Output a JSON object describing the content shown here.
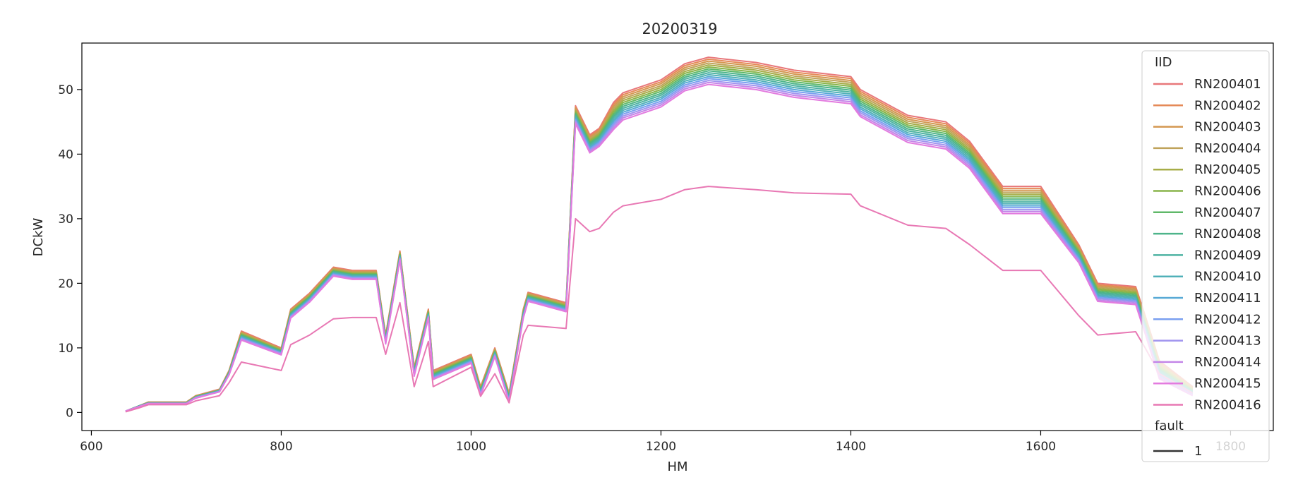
{
  "chart_data": {
    "type": "line",
    "title": "20200319",
    "xlabel": "HM",
    "ylabel": "DCkW",
    "xlim": [
      590,
      1845
    ],
    "ylim": [
      -2.8,
      57.2
    ],
    "xticks": [
      600,
      800,
      1000,
      1200,
      1400,
      1600,
      1800
    ],
    "yticks": [
      0,
      10,
      20,
      30,
      40,
      50
    ],
    "grid": false,
    "legend": {
      "placement": "right",
      "hue_title": "IID",
      "style_title": "fault",
      "style_entries": [
        "1"
      ]
    },
    "x": [
      636,
      650,
      660,
      700,
      710,
      735,
      745,
      758,
      800,
      810,
      830,
      855,
      875,
      900,
      910,
      925,
      940,
      955,
      960,
      1000,
      1010,
      1025,
      1040,
      1055,
      1060,
      1100,
      1110,
      1125,
      1135,
      1150,
      1160,
      1200,
      1225,
      1250,
      1300,
      1340,
      1400,
      1410,
      1460,
      1500,
      1525,
      1560,
      1600,
      1640,
      1660,
      1700,
      1710,
      1725,
      1760
    ],
    "series": [
      {
        "name": "RN200401",
        "color": "#e8777a",
        "values": [
          0.2,
          1.0,
          1.6,
          1.6,
          2.6,
          3.6,
          6.5,
          12.6,
          10.0,
          16.0,
          18.5,
          22.5,
          22.0,
          22.0,
          12.0,
          25.0,
          7.0,
          16.0,
          6.5,
          9.0,
          4.0,
          10.0,
          3.0,
          16.0,
          18.6,
          17.0,
          47.5,
          43.0,
          44.0,
          48.0,
          49.5,
          51.5,
          54.0,
          55.0,
          54.2,
          53.0,
          52.0,
          50.0,
          46.0,
          45.0,
          42.0,
          35.0,
          35.0,
          26.0,
          20.0,
          19.5,
          15.0,
          8.0,
          4.0
        ]
      },
      {
        "name": "RN200402",
        "color": "#e58a58",
        "values": [
          0.2,
          1.0,
          1.6,
          1.6,
          2.6,
          3.5,
          6.4,
          12.5,
          9.9,
          15.9,
          18.4,
          22.4,
          21.9,
          21.9,
          11.9,
          24.9,
          6.9,
          15.9,
          6.4,
          8.9,
          3.9,
          9.9,
          2.9,
          15.9,
          18.5,
          16.9,
          47.3,
          42.8,
          43.8,
          47.7,
          49.2,
          51.2,
          53.7,
          54.7,
          53.9,
          52.7,
          51.7,
          49.7,
          45.7,
          44.7,
          41.7,
          34.7,
          34.7,
          25.8,
          19.8,
          19.3,
          14.8,
          7.8,
          3.9
        ]
      },
      {
        "name": "RN200403",
        "color": "#d49750",
        "values": [
          0.2,
          1.0,
          1.6,
          1.6,
          2.5,
          3.5,
          6.4,
          12.4,
          9.8,
          15.8,
          18.3,
          22.3,
          21.8,
          21.8,
          11.8,
          24.8,
          6.8,
          15.8,
          6.3,
          8.8,
          3.8,
          9.8,
          2.8,
          15.8,
          18.4,
          16.8,
          47.1,
          42.6,
          43.6,
          47.4,
          48.9,
          50.9,
          53.4,
          54.4,
          53.6,
          52.4,
          51.4,
          49.4,
          45.4,
          44.4,
          41.4,
          34.4,
          34.4,
          25.6,
          19.6,
          19.1,
          14.6,
          7.6,
          3.8
        ]
      },
      {
        "name": "RN200404",
        "color": "#bfa35a",
        "values": [
          0.2,
          1.0,
          1.5,
          1.5,
          2.5,
          3.5,
          6.3,
          12.3,
          9.8,
          15.7,
          18.2,
          22.2,
          21.7,
          21.7,
          11.7,
          24.7,
          6.7,
          15.7,
          6.2,
          8.7,
          3.7,
          9.7,
          2.7,
          15.7,
          18.3,
          16.7,
          46.9,
          42.4,
          43.4,
          47.1,
          48.6,
          50.6,
          53.1,
          54.1,
          53.3,
          52.1,
          51.1,
          49.1,
          45.1,
          44.1,
          41.1,
          34.1,
          34.1,
          25.4,
          19.4,
          18.9,
          14.4,
          7.4,
          3.7
        ]
      },
      {
        "name": "RN200405",
        "color": "#a7ad48",
        "values": [
          0.2,
          1.0,
          1.5,
          1.5,
          2.5,
          3.5,
          6.3,
          12.2,
          9.7,
          15.6,
          18.1,
          22.1,
          21.6,
          21.6,
          11.6,
          24.6,
          6.6,
          15.6,
          6.1,
          8.6,
          3.6,
          9.6,
          2.6,
          15.6,
          18.2,
          16.6,
          46.7,
          42.2,
          43.2,
          46.8,
          48.3,
          50.3,
          52.8,
          53.8,
          53.0,
          51.8,
          50.8,
          48.8,
          44.8,
          43.8,
          40.8,
          33.8,
          33.8,
          25.2,
          19.2,
          18.7,
          14.2,
          7.2,
          3.6
        ]
      },
      {
        "name": "RN200406",
        "color": "#89b44a",
        "values": [
          0.2,
          1.0,
          1.5,
          1.5,
          2.5,
          3.4,
          6.2,
          12.1,
          9.6,
          15.5,
          18.0,
          22.0,
          21.5,
          21.5,
          11.5,
          24.5,
          6.5,
          15.5,
          6.0,
          8.5,
          3.5,
          9.5,
          2.5,
          15.5,
          18.1,
          16.5,
          46.5,
          42.0,
          43.0,
          46.5,
          48.0,
          50.0,
          52.5,
          53.5,
          52.7,
          51.5,
          50.5,
          48.5,
          44.5,
          43.5,
          40.5,
          33.5,
          33.5,
          25.0,
          19.0,
          18.5,
          14.0,
          7.0,
          3.5
        ]
      },
      {
        "name": "RN200407",
        "color": "#5fb868",
        "values": [
          0.2,
          1.0,
          1.5,
          1.5,
          2.4,
          3.4,
          6.2,
          12.0,
          9.5,
          15.4,
          17.9,
          21.9,
          21.4,
          21.4,
          11.4,
          24.4,
          6.4,
          15.4,
          5.9,
          8.4,
          3.4,
          9.4,
          2.4,
          15.4,
          18.0,
          16.4,
          46.3,
          41.8,
          42.8,
          46.2,
          47.7,
          49.7,
          52.2,
          53.2,
          52.4,
          51.2,
          50.2,
          48.2,
          44.2,
          43.2,
          40.2,
          33.2,
          33.2,
          24.8,
          18.8,
          18.3,
          13.8,
          6.8,
          3.4
        ]
      },
      {
        "name": "RN200408",
        "color": "#4db48a",
        "values": [
          0.2,
          1.0,
          1.5,
          1.5,
          2.4,
          3.4,
          6.1,
          11.9,
          9.5,
          15.3,
          17.8,
          21.8,
          21.3,
          21.3,
          11.3,
          24.3,
          6.3,
          15.3,
          5.8,
          8.3,
          3.3,
          9.3,
          2.3,
          15.3,
          17.9,
          16.3,
          46.1,
          41.6,
          42.6,
          45.9,
          47.4,
          49.4,
          51.9,
          52.9,
          52.1,
          50.9,
          49.9,
          47.9,
          43.9,
          42.9,
          39.9,
          32.9,
          32.9,
          24.6,
          18.6,
          18.1,
          13.6,
          6.6,
          3.3
        ]
      },
      {
        "name": "RN200409",
        "color": "#4eb3a2",
        "values": [
          0.2,
          1.0,
          1.5,
          1.5,
          2.4,
          3.4,
          6.1,
          11.8,
          9.4,
          15.2,
          17.7,
          21.7,
          21.2,
          21.2,
          11.2,
          24.2,
          6.2,
          15.2,
          5.7,
          8.2,
          3.2,
          9.2,
          2.2,
          15.2,
          17.8,
          16.2,
          45.9,
          41.4,
          42.4,
          45.6,
          47.1,
          49.1,
          51.6,
          52.6,
          51.8,
          50.6,
          49.6,
          47.6,
          43.6,
          42.6,
          39.6,
          32.6,
          32.6,
          24.4,
          18.4,
          17.9,
          13.4,
          6.4,
          3.2
        ]
      },
      {
        "name": "RN200410",
        "color": "#50b1b8",
        "values": [
          0.2,
          0.9,
          1.4,
          1.4,
          2.4,
          3.3,
          6.0,
          11.7,
          9.3,
          15.1,
          17.6,
          21.6,
          21.1,
          21.1,
          11.1,
          24.1,
          6.1,
          15.1,
          5.6,
          8.1,
          3.1,
          9.1,
          2.1,
          15.1,
          17.7,
          16.1,
          45.7,
          41.2,
          42.2,
          45.3,
          46.8,
          48.8,
          51.3,
          52.3,
          51.5,
          50.3,
          49.3,
          47.3,
          43.3,
          42.3,
          39.3,
          32.3,
          32.3,
          24.2,
          18.2,
          17.7,
          13.2,
          6.2,
          3.1
        ]
      },
      {
        "name": "RN200411",
        "color": "#58a9d6",
        "values": [
          0.2,
          0.9,
          1.4,
          1.4,
          2.3,
          3.3,
          6.0,
          11.6,
          9.2,
          15.0,
          17.5,
          21.5,
          21.0,
          21.0,
          11.0,
          24.0,
          6.0,
          15.0,
          5.5,
          8.0,
          3.0,
          9.0,
          2.0,
          15.0,
          17.6,
          16.0,
          45.5,
          41.0,
          42.0,
          45.0,
          46.5,
          48.5,
          51.0,
          52.0,
          51.2,
          50.0,
          49.0,
          47.0,
          43.0,
          42.0,
          39.0,
          32.0,
          32.0,
          24.0,
          18.0,
          17.5,
          13.0,
          6.0,
          3.0
        ]
      },
      {
        "name": "RN200412",
        "color": "#7a9ff0",
        "values": [
          0.2,
          0.9,
          1.4,
          1.4,
          2.3,
          3.3,
          5.9,
          11.5,
          9.2,
          14.9,
          17.4,
          21.4,
          20.9,
          20.9,
          10.9,
          23.9,
          5.9,
          14.9,
          5.4,
          7.9,
          2.9,
          8.9,
          1.9,
          14.9,
          17.5,
          15.9,
          45.3,
          40.8,
          41.8,
          44.7,
          46.2,
          48.2,
          50.7,
          51.7,
          50.9,
          49.7,
          48.7,
          46.7,
          42.7,
          41.7,
          38.7,
          31.7,
          31.7,
          23.8,
          17.8,
          17.3,
          12.8,
          5.8,
          2.9
        ]
      },
      {
        "name": "RN200413",
        "color": "#a194ef",
        "values": [
          0.2,
          0.9,
          1.4,
          1.4,
          2.3,
          3.2,
          5.9,
          11.4,
          9.1,
          14.8,
          17.3,
          21.3,
          20.8,
          20.8,
          10.8,
          23.8,
          5.8,
          14.8,
          5.3,
          7.8,
          2.8,
          8.8,
          1.8,
          14.8,
          17.4,
          15.8,
          45.1,
          40.6,
          41.6,
          44.4,
          45.9,
          47.9,
          50.4,
          51.4,
          50.6,
          49.4,
          48.4,
          46.4,
          42.4,
          41.4,
          38.4,
          31.4,
          31.4,
          23.6,
          17.6,
          17.1,
          12.6,
          5.6,
          2.8
        ]
      },
      {
        "name": "RN200414",
        "color": "#c486e8",
        "values": [
          0.2,
          0.9,
          1.4,
          1.4,
          2.3,
          3.2,
          5.8,
          11.3,
          9.0,
          14.7,
          17.2,
          21.2,
          20.7,
          20.7,
          10.7,
          23.7,
          5.7,
          14.7,
          5.2,
          7.7,
          2.7,
          8.7,
          1.7,
          14.7,
          17.3,
          15.7,
          44.9,
          40.4,
          41.4,
          44.1,
          45.6,
          47.6,
          50.1,
          51.1,
          50.3,
          49.1,
          48.1,
          46.1,
          42.1,
          41.1,
          38.1,
          31.1,
          31.1,
          23.4,
          17.4,
          16.9,
          12.4,
          5.4,
          2.7
        ]
      },
      {
        "name": "RN200415",
        "color": "#e37bdf",
        "values": [
          0.2,
          0.9,
          1.4,
          1.4,
          2.2,
          3.2,
          5.8,
          11.2,
          8.9,
          14.6,
          17.1,
          21.1,
          20.6,
          20.6,
          10.6,
          23.6,
          5.6,
          14.6,
          5.1,
          7.6,
          2.6,
          8.6,
          1.6,
          14.6,
          17.2,
          15.6,
          44.7,
          40.2,
          41.2,
          43.8,
          45.3,
          47.3,
          49.8,
          50.8,
          50.0,
          48.8,
          47.8,
          45.8,
          41.8,
          40.8,
          37.8,
          30.8,
          30.8,
          23.2,
          17.2,
          16.7,
          12.2,
          5.2,
          2.6
        ]
      },
      {
        "name": "RN200416",
        "color": "#e878b4",
        "values": [
          0.1,
          0.7,
          1.2,
          1.2,
          1.8,
          2.6,
          4.6,
          7.8,
          6.5,
          10.5,
          12.0,
          14.5,
          14.7,
          14.7,
          9.0,
          17.0,
          4.0,
          11.0,
          4.0,
          7.0,
          2.5,
          6.0,
          1.5,
          12.0,
          13.5,
          13.0,
          30.0,
          28.0,
          28.5,
          31.0,
          32.0,
          33.0,
          34.5,
          35.0,
          34.5,
          34.0,
          33.8,
          32.0,
          29.0,
          28.5,
          26.0,
          22.0,
          22.0,
          15.0,
          12.0,
          12.5,
          10.0,
          6.0,
          3.0
        ]
      }
    ]
  }
}
